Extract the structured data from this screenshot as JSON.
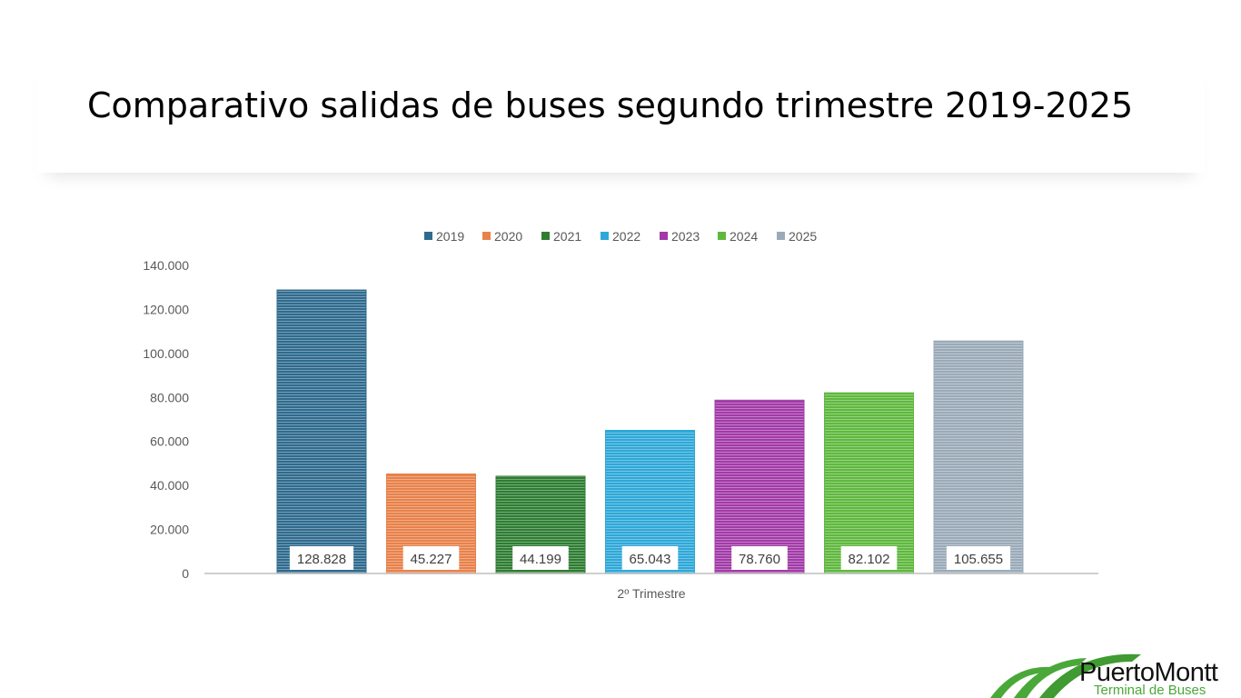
{
  "slide": {
    "title": "Comparativo salidas de buses segundo trimestre 2019-2025"
  },
  "chart_data": {
    "type": "bar",
    "title": "",
    "categories": [
      "2º Trimestre"
    ],
    "xlabel": "",
    "ylabel": "",
    "ylim": [
      0,
      140000
    ],
    "yticks": [
      0,
      20000,
      40000,
      60000,
      80000,
      100000,
      120000,
      140000
    ],
    "ytick_labels": [
      "0",
      "20.000",
      "40.000",
      "60.000",
      "80.000",
      "100.000",
      "120.000",
      "140.000"
    ],
    "grid": false,
    "legend_position": "top",
    "series": [
      {
        "name": "2019",
        "values": [
          128828
        ],
        "label": "128.828",
        "color": "#2f6b8e"
      },
      {
        "name": "2020",
        "values": [
          45227
        ],
        "label": "45.227",
        "color": "#e8814a"
      },
      {
        "name": "2021",
        "values": [
          44199
        ],
        "label": "44.199",
        "color": "#2e7d32"
      },
      {
        "name": "2022",
        "values": [
          65043
        ],
        "label": "65.043",
        "color": "#2ea8d8"
      },
      {
        "name": "2023",
        "values": [
          78760
        ],
        "label": "78.760",
        "color": "#a23aa8"
      },
      {
        "name": "2024",
        "values": [
          82102
        ],
        "label": "82.102",
        "color": "#5fb83e"
      },
      {
        "name": "2025",
        "values": [
          105655
        ],
        "label": "105.655",
        "color": "#9aaab8"
      }
    ]
  },
  "logo": {
    "line1": "PuertoMontt",
    "line2": "Terminal de Buses"
  }
}
